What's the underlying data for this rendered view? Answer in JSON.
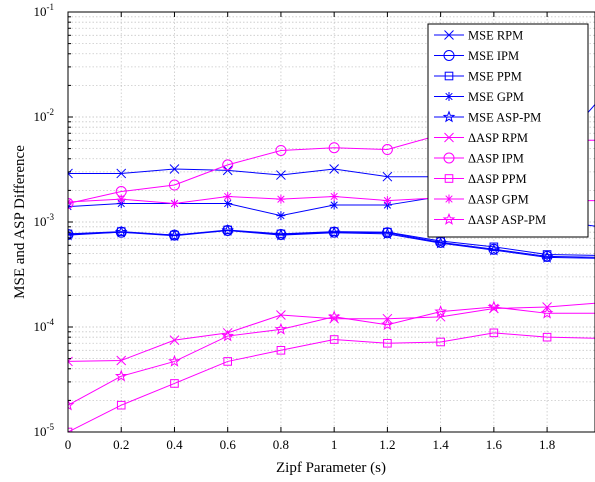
{
  "chart_data": {
    "type": "line",
    "xlabel": "Zipf Parameter (s)",
    "ylabel": "MSE and ASP Difference",
    "xlim": [
      0,
      1.98
    ],
    "ylim": [
      1e-05,
      0.1
    ],
    "yscale": "log",
    "grid": true,
    "legend_position": "top-right",
    "x_ticks": [
      "0",
      "0.2",
      "0.4",
      "0.6",
      "0.8",
      "1",
      "1.2",
      "1.4",
      "1.6",
      "1.8"
    ],
    "x_tick_values": [
      0,
      0.2,
      0.4,
      0.6,
      0.8,
      1.0,
      1.2,
      1.4,
      1.6,
      1.8
    ],
    "y_ticks": [
      {
        "base": "10",
        "exp": "-5",
        "value": 1e-05
      },
      {
        "base": "10",
        "exp": "-4",
        "value": 0.0001
      },
      {
        "base": "10",
        "exp": "-3",
        "value": 0.001
      },
      {
        "base": "10",
        "exp": "-2",
        "value": 0.01
      },
      {
        "base": "10",
        "exp": "-1",
        "value": 0.1
      }
    ],
    "x": [
      0,
      0.2,
      0.4,
      0.6,
      0.8,
      1.0,
      1.2,
      1.4,
      1.6,
      1.8,
      2.0
    ],
    "series": [
      {
        "name": "MSE RPM",
        "color": "#0000ff",
        "marker": "x",
        "values": [
          0.0029,
          0.0029,
          0.0032,
          0.0031,
          0.0028,
          0.0032,
          0.0027,
          0.0027,
          0.0024,
          0.004,
          0.015
        ]
      },
      {
        "name": "MSE IPM",
        "color": "#0000ff",
        "marker": "o",
        "values": [
          0.00076,
          0.0008,
          0.00075,
          0.00083,
          0.00076,
          0.0008,
          0.00079,
          0.00064,
          0.00055,
          0.00047,
          0.00046
        ]
      },
      {
        "name": "MSE PPM",
        "color": "#0000ff",
        "marker": "s",
        "values": [
          0.00077,
          0.00081,
          0.00075,
          0.00084,
          0.00077,
          0.00081,
          0.0008,
          0.00066,
          0.00058,
          0.00049,
          0.00048
        ]
      },
      {
        "name": "MSE GPM",
        "color": "#0000ff",
        "marker": "asterisk",
        "values": [
          0.0014,
          0.0015,
          0.0015,
          0.0015,
          0.00115,
          0.00145,
          0.00145,
          0.00175,
          0.00145,
          0.00105,
          0.0009
        ]
      },
      {
        "name": "MSE ASP-PM",
        "color": "#0000ff",
        "marker": "star",
        "values": [
          0.00075,
          0.0008,
          0.00074,
          0.00083,
          0.00075,
          0.00079,
          0.00077,
          0.00063,
          0.00054,
          0.00046,
          0.00045
        ]
      },
      {
        "name": "ΔASP RPM",
        "color": "#ff00ff",
        "marker": "x",
        "values": [
          4.7e-05,
          4.8e-05,
          7.5e-05,
          8.8e-05,
          0.00013,
          0.00012,
          0.00012,
          0.000125,
          0.00015,
          0.000155,
          0.00017
        ]
      },
      {
        "name": "ΔASP IPM",
        "color": "#ff00ff",
        "marker": "o",
        "values": [
          0.0015,
          0.00195,
          0.00225,
          0.0035,
          0.0048,
          0.0051,
          0.0049,
          0.0068,
          0.0065,
          0.006,
          0.006
        ]
      },
      {
        "name": "ΔASP PPM",
        "color": "#ff00ff",
        "marker": "s",
        "values": [
          1e-05,
          1.8e-05,
          2.9e-05,
          4.7e-05,
          6e-05,
          7.6e-05,
          7e-05,
          7.2e-05,
          8.8e-05,
          8e-05,
          7.8e-05
        ]
      },
      {
        "name": "ΔASP GPM",
        "color": "#ff00ff",
        "marker": "asterisk",
        "values": [
          0.00155,
          0.00165,
          0.0015,
          0.00175,
          0.00165,
          0.00175,
          0.0016,
          0.0017,
          0.0018,
          0.0016,
          0.0016
        ]
      },
      {
        "name": "ΔASP ASP-PM",
        "color": "#ff00ff",
        "marker": "star",
        "values": [
          1.8e-05,
          3.4e-05,
          4.7e-05,
          8.2e-05,
          9.5e-05,
          0.000125,
          0.000105,
          0.00014,
          0.000155,
          0.000135,
          0.000135
        ]
      }
    ]
  }
}
